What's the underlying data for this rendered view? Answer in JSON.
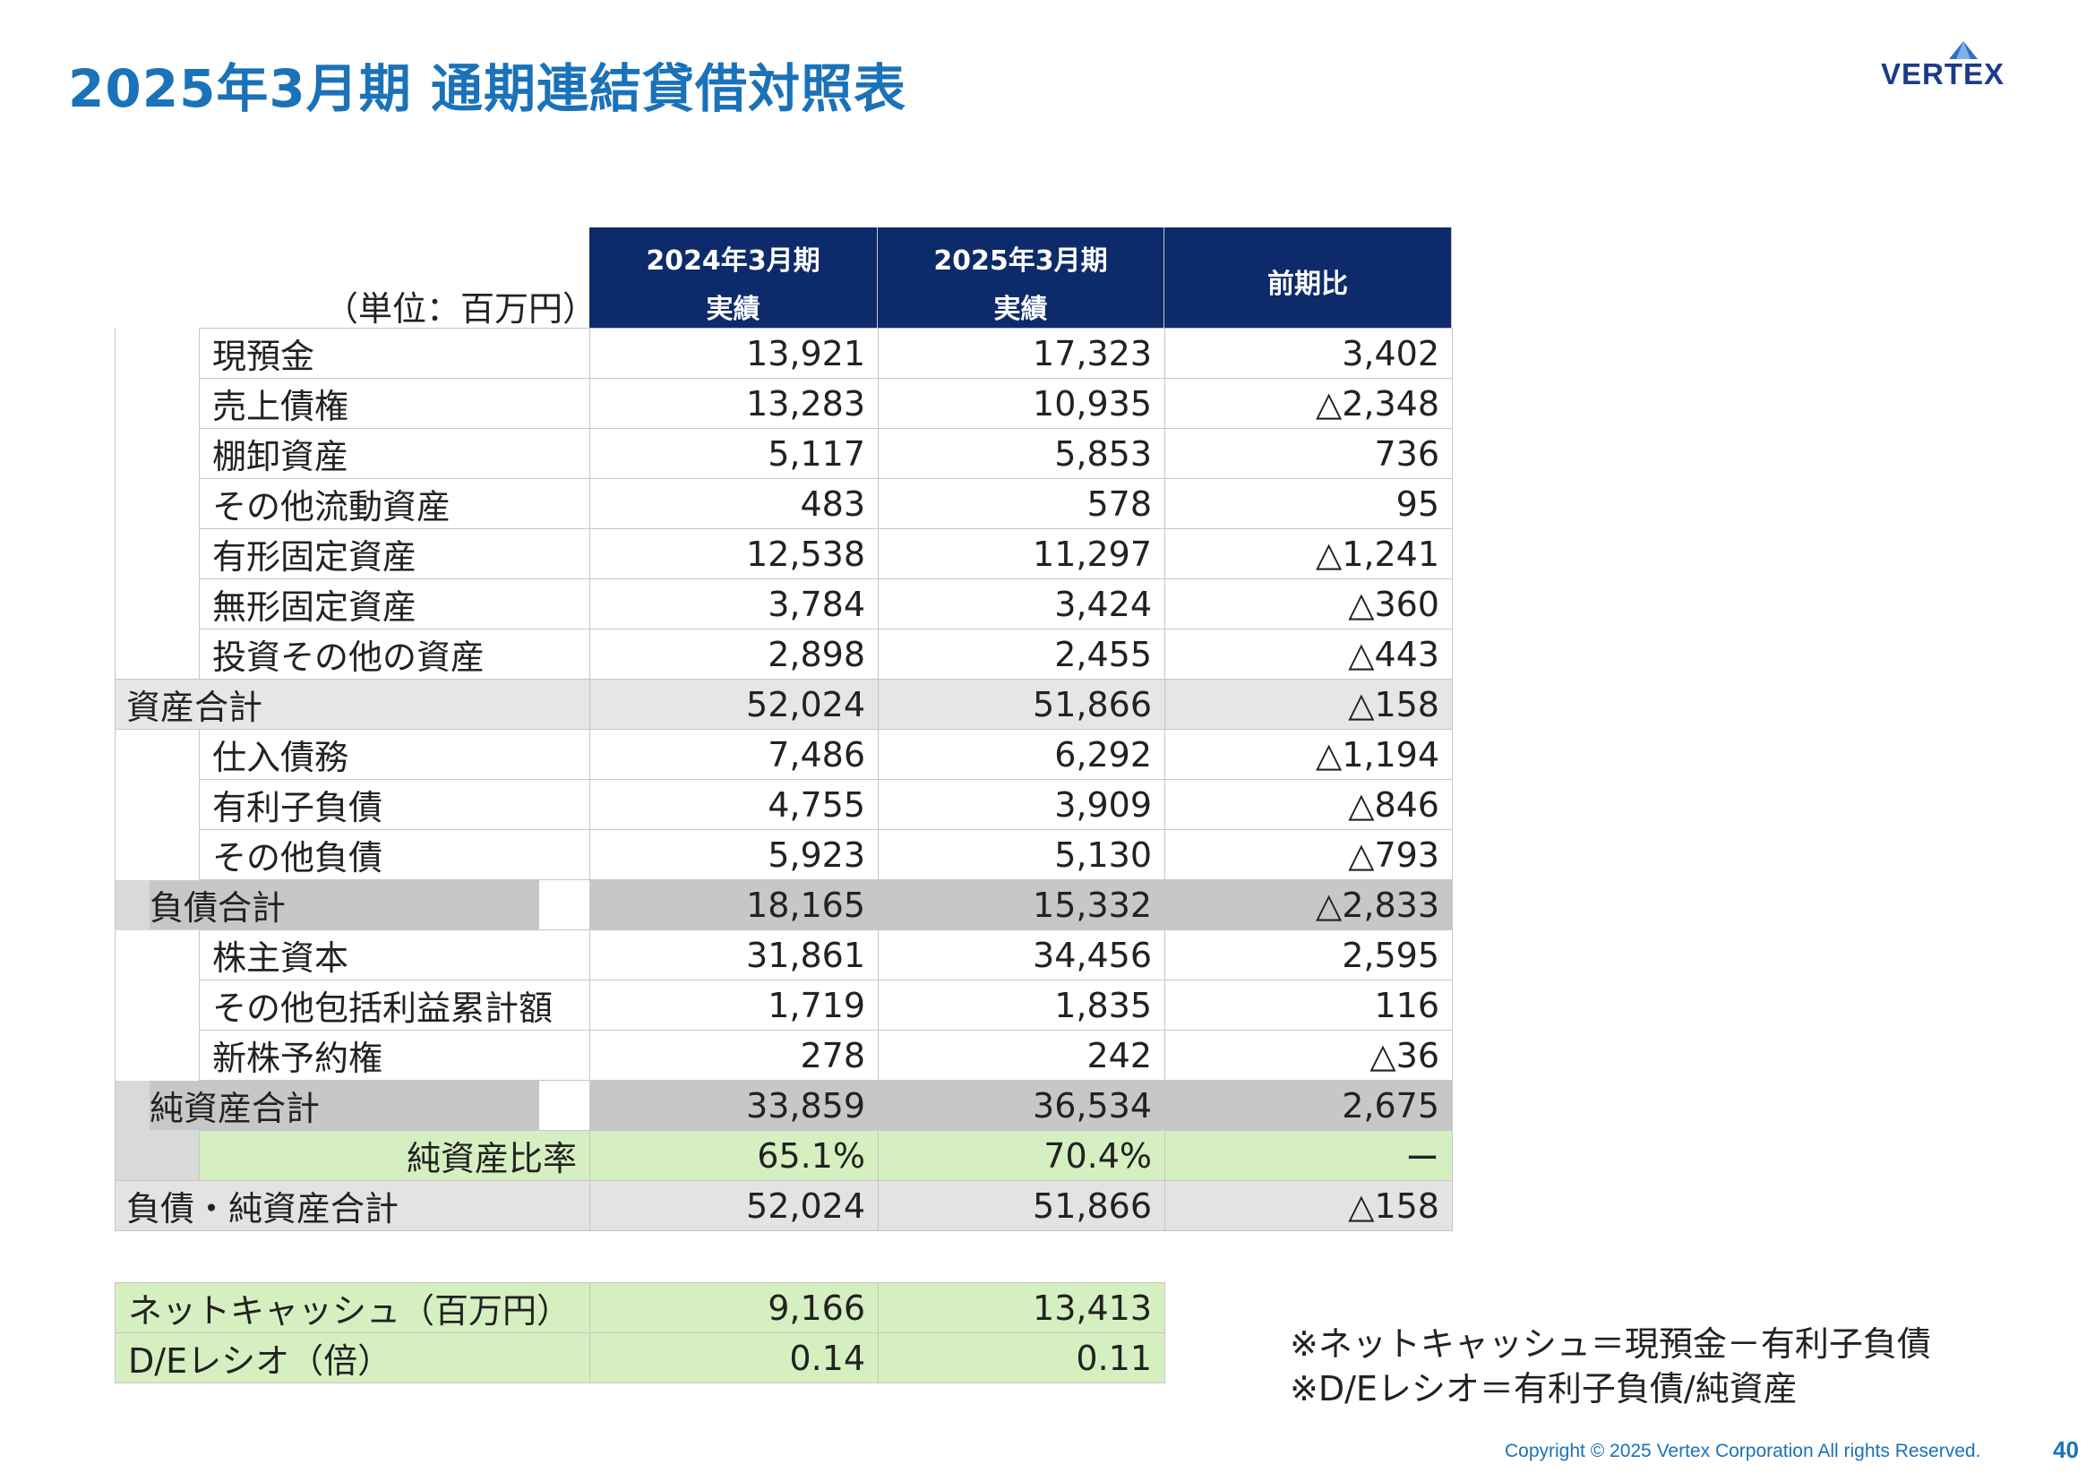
{
  "title": "2025年3月期 通期連結貸借対照表",
  "logo": "VERTEX",
  "unit": "（単位：百万円）",
  "columns": [
    {
      "line1": "2024年3月期",
      "line2": "実績"
    },
    {
      "line1": "2025年3月期",
      "line2": "実績"
    },
    {
      "line1": "前期比",
      "line2": ""
    }
  ],
  "rows": [
    {
      "label": "現預金",
      "v1": "13,921",
      "v2": "17,323",
      "v3": "3,402"
    },
    {
      "label": "売上債権",
      "v1": "13,283",
      "v2": "10,935",
      "v3": "△2,348"
    },
    {
      "label": "棚卸資産",
      "v1": "5,117",
      "v2": "5,853",
      "v3": "736"
    },
    {
      "label": "その他流動資産",
      "v1": "483",
      "v2": "578",
      "v3": "95"
    },
    {
      "label": "有形固定資産",
      "v1": "12,538",
      "v2": "11,297",
      "v3": "△1,241"
    },
    {
      "label": "無形固定資産",
      "v1": "3,784",
      "v2": "3,424",
      "v3": "△360"
    },
    {
      "label": "投資その他の資産",
      "v1": "2,898",
      "v2": "2,455",
      "v3": "△443"
    },
    {
      "label": "資産合計",
      "v1": "52,024",
      "v2": "51,866",
      "v3": "△158"
    },
    {
      "label": "仕入債務",
      "v1": "7,486",
      "v2": "6,292",
      "v3": "△1,194"
    },
    {
      "label": "有利子負債",
      "v1": "4,755",
      "v2": "3,909",
      "v3": "△846"
    },
    {
      "label": "その他負債",
      "v1": "5,923",
      "v2": "5,130",
      "v3": "△793"
    },
    {
      "label": "負債合計",
      "v1": "18,165",
      "v2": "15,332",
      "v3": "△2,833"
    },
    {
      "label": "株主資本",
      "v1": "31,861",
      "v2": "34,456",
      "v3": "2,595"
    },
    {
      "label": "その他包括利益累計額",
      "v1": "1,719",
      "v2": "1,835",
      "v3": "116"
    },
    {
      "label": "新株予約権",
      "v1": "278",
      "v2": "242",
      "v3": "△36"
    },
    {
      "label": "純資産合計",
      "v1": "33,859",
      "v2": "36,534",
      "v3": "2,675"
    },
    {
      "label": "純資産比率",
      "v1": "65.1%",
      "v2": "70.4%",
      "v3": "ー"
    },
    {
      "label": "負債・純資産合計",
      "v1": "52,024",
      "v2": "51,866",
      "v3": "△158"
    }
  ],
  "extra": [
    {
      "label": "ネットキャッシュ（百万円）",
      "v1": "9,166",
      "v2": "13,413"
    },
    {
      "label": "D/Eレシオ（倍）",
      "v1": "0.14",
      "v2": "0.11"
    }
  ],
  "notes": [
    "※ネットキャッシュ＝現預金－有利子負債",
    "※D/Eレシオ＝有利子負債/純資産"
  ],
  "footer": "Copyright © 2025 Vertex Corporation All rights Reserved.",
  "page_number": "40",
  "colors": {
    "title": "#1a72b8",
    "header_bg": "#0d2a6b",
    "highlight": "#d6efc0"
  }
}
